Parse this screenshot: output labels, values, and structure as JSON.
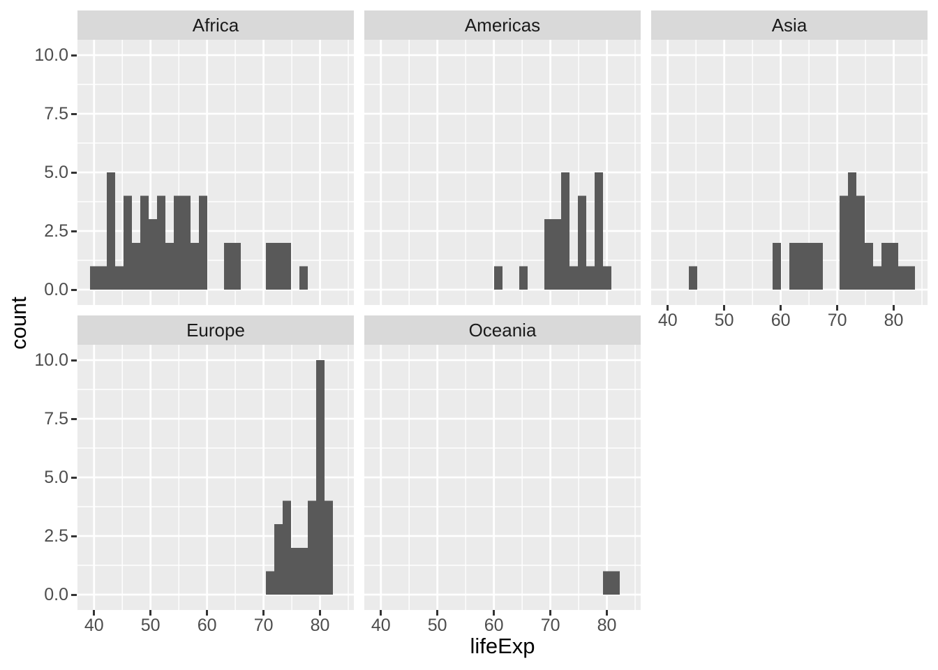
{
  "figure": {
    "background": "#FFFFFF",
    "panel_bg": "#EBEBEB",
    "strip_bg": "#D9D9D9",
    "grid_color": "#FFFFFF",
    "bar_color": "#595959",
    "axis_text_color": "#4D4D4D",
    "strip_text_color": "#1A1A1A",
    "title_color": "#000000",
    "tick_color": "#333333"
  },
  "chart_data": {
    "type": "bar",
    "subtype": "faceted_histogram",
    "title": "",
    "xlabel": "lifeExp",
    "ylabel": "count",
    "legend": "none",
    "grid": true,
    "xlim": [
      37.07,
      85.98
    ],
    "ylim": [
      -0.65,
      10.8
    ],
    "x_ticks": [
      40,
      50,
      60,
      70,
      80
    ],
    "x_tick_labels": [
      "40",
      "50",
      "60",
      "70",
      "80"
    ],
    "x_minor_ticks": [
      45,
      55,
      65,
      75,
      85
    ],
    "y_tick_values": [
      0,
      2.5,
      5,
      7.5,
      10
    ],
    "y_tick_labels": [
      "0.0",
      "2.5",
      "5.0",
      "7.5",
      "10.0"
    ],
    "y_minor_ticks": [
      1.25,
      3.75,
      6.25,
      8.75
    ],
    "bin_start": 39.2839,
    "bin_width": 1.48241,
    "n_bins": 30,
    "facets": [
      {
        "label": "Africa",
        "counts": [
          1,
          1,
          5,
          1,
          4,
          2,
          4,
          3,
          4,
          2,
          4,
          4,
          2,
          4,
          0,
          0,
          2,
          2,
          0,
          0,
          0,
          2,
          2,
          2,
          0,
          1,
          0,
          0,
          0,
          0
        ],
        "total": 52
      },
      {
        "label": "Americas",
        "counts": [
          0,
          0,
          0,
          0,
          0,
          0,
          0,
          0,
          0,
          0,
          0,
          0,
          0,
          0,
          1,
          0,
          0,
          1,
          0,
          0,
          3,
          3,
          5,
          1,
          4,
          1,
          5,
          1,
          0,
          0
        ],
        "total": 25
      },
      {
        "label": "Asia",
        "counts": [
          0,
          0,
          0,
          1,
          0,
          0,
          0,
          0,
          0,
          0,
          0,
          0,
          0,
          2,
          0,
          2,
          2,
          2,
          2,
          0,
          0,
          4,
          5,
          4,
          2,
          1,
          2,
          2,
          1,
          1
        ],
        "total": 33
      },
      {
        "label": "Europe",
        "counts": [
          0,
          0,
          0,
          0,
          0,
          0,
          0,
          0,
          0,
          0,
          0,
          0,
          0,
          0,
          0,
          0,
          0,
          0,
          0,
          0,
          0,
          1,
          3,
          4,
          2,
          2,
          4,
          10,
          4,
          0
        ],
        "total": 30
      },
      {
        "label": "Oceania",
        "counts": [
          0,
          0,
          0,
          0,
          0,
          0,
          0,
          0,
          0,
          0,
          0,
          0,
          0,
          0,
          0,
          0,
          0,
          0,
          0,
          0,
          0,
          0,
          0,
          0,
          0,
          0,
          0,
          1,
          1,
          0
        ],
        "total": 2
      }
    ]
  }
}
